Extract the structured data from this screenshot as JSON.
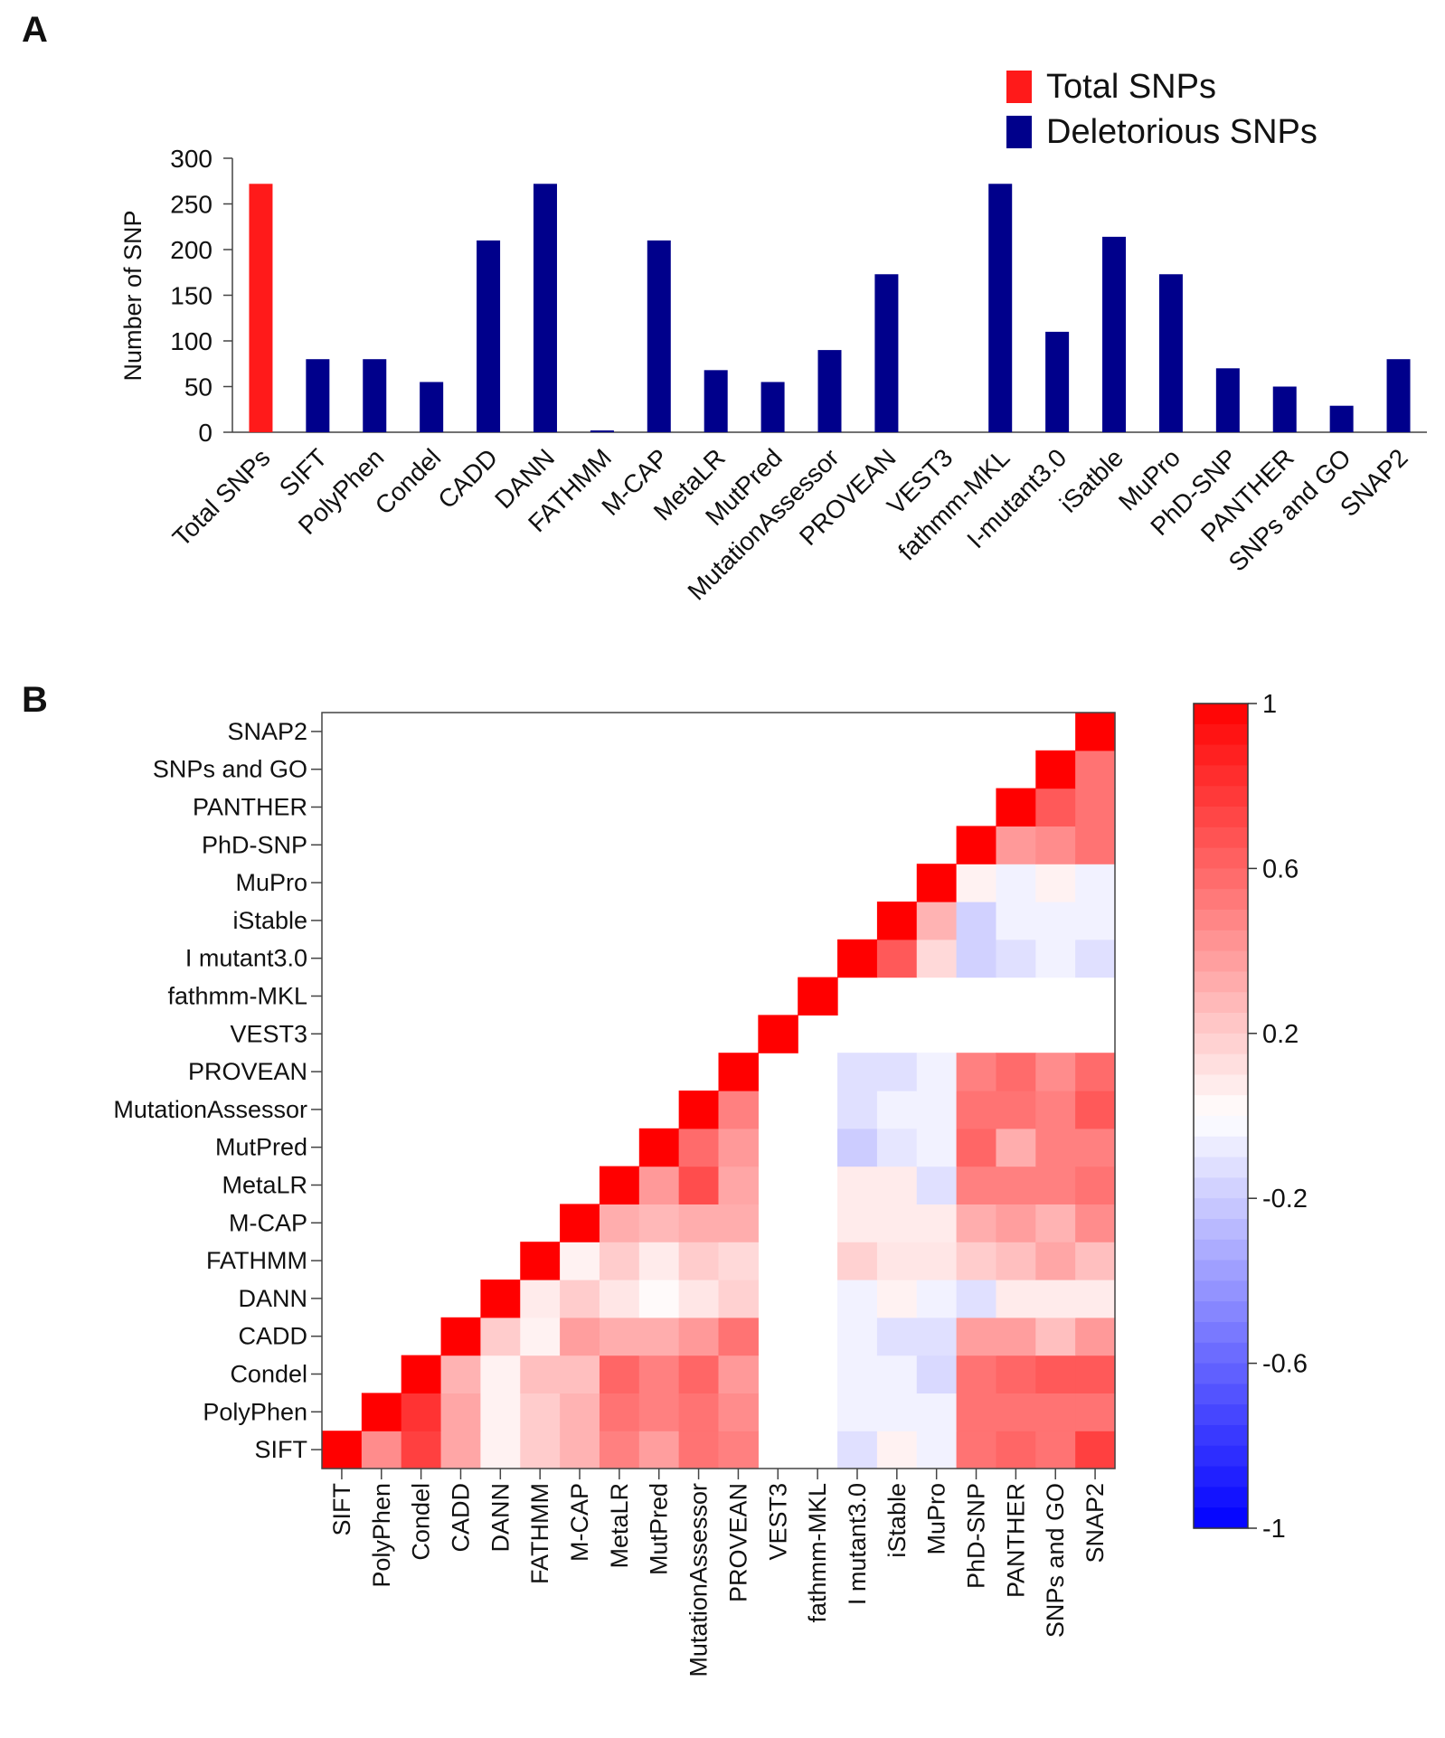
{
  "panels": {
    "a": "A",
    "b": "B"
  },
  "chart_data": [
    {
      "type": "bar",
      "panel": "A",
      "title": "",
      "xlabel": "",
      "ylabel": "Number of SNP",
      "ylim": [
        0,
        300
      ],
      "yticks": [
        0,
        50,
        100,
        150,
        200,
        250,
        300
      ],
      "categories": [
        "Total SNPs",
        "SIFT",
        "PolyPhen",
        "Condel",
        "CADD",
        "DANN",
        "FATHMM",
        "M-CAP",
        "MetaLR",
        "MutPred",
        "MutationAssessor",
        "PROVEAN",
        "VEST3",
        "fathmm-MKL",
        "I-mutant3.0",
        "iSatble",
        "MuPro",
        "PhD-SNP",
        "PANTHER",
        "SNPs and GO",
        "SNAP2"
      ],
      "series": [
        {
          "name": "Total SNPs",
          "color": "#ff1a1a",
          "values": [
            272,
            null,
            null,
            null,
            null,
            null,
            null,
            null,
            null,
            null,
            null,
            null,
            null,
            null,
            null,
            null,
            null,
            null,
            null,
            null,
            null
          ]
        },
        {
          "name": "Deletorious SNPs",
          "color": "#00008b",
          "values": [
            null,
            80,
            80,
            55,
            210,
            272,
            2,
            210,
            68,
            55,
            90,
            173,
            0,
            272,
            110,
            214,
            173,
            70,
            50,
            29,
            80
          ]
        }
      ],
      "legend": [
        "Total SNPs",
        "Deletorious SNPs"
      ],
      "legend_position": "top-right"
    },
    {
      "type": "heatmap",
      "panel": "B",
      "title": "",
      "labels": [
        "SIFT",
        "PolyPhen",
        "Condel",
        "CADD",
        "DANN",
        "FATHMM",
        "M-CAP",
        "MetaLR",
        "MutPred",
        "MutationAssessor",
        "PROVEAN",
        "VEST3",
        "fathmm-MKL",
        "I mutant3.0",
        "iStable",
        "MuPro",
        "PhD-SNP",
        "PANTHER",
        "SNPs and GO",
        "SNAP2"
      ],
      "row_order": "bottom-to-top",
      "matrix": [
        [
          1.0,
          0.45,
          0.75,
          0.35,
          0.05,
          0.2,
          0.3,
          0.5,
          0.38,
          0.55,
          0.5,
          null,
          null,
          -0.12,
          0.05,
          -0.05,
          0.55,
          0.6,
          0.55,
          0.75
        ],
        [
          null,
          1.0,
          0.8,
          0.35,
          0.05,
          0.2,
          0.3,
          0.55,
          0.5,
          0.55,
          0.45,
          null,
          null,
          -0.05,
          -0.05,
          -0.05,
          0.55,
          0.55,
          0.55,
          0.55
        ],
        [
          null,
          null,
          1.0,
          0.3,
          0.05,
          0.25,
          0.25,
          0.6,
          0.5,
          0.6,
          0.4,
          null,
          null,
          -0.05,
          -0.05,
          -0.15,
          0.55,
          0.6,
          0.65,
          0.65
        ],
        [
          null,
          null,
          null,
          1.0,
          0.2,
          0.05,
          0.38,
          0.32,
          0.32,
          0.4,
          0.55,
          null,
          null,
          -0.05,
          -0.12,
          -0.12,
          0.38,
          0.38,
          0.25,
          0.4
        ],
        [
          null,
          null,
          null,
          null,
          1.0,
          0.08,
          0.2,
          0.1,
          0.02,
          0.1,
          0.18,
          null,
          null,
          -0.05,
          0.05,
          -0.05,
          -0.12,
          0.08,
          0.08,
          0.08
        ],
        [
          null,
          null,
          null,
          null,
          null,
          1.0,
          0.05,
          0.2,
          0.08,
          0.2,
          0.15,
          null,
          null,
          0.18,
          0.1,
          0.1,
          0.2,
          0.25,
          0.35,
          0.25
        ],
        [
          null,
          null,
          null,
          null,
          null,
          null,
          1.0,
          0.32,
          0.28,
          0.32,
          0.32,
          null,
          null,
          0.08,
          0.08,
          0.08,
          0.32,
          0.38,
          0.3,
          0.45
        ],
        [
          null,
          null,
          null,
          null,
          null,
          null,
          null,
          1.0,
          0.4,
          0.7,
          0.35,
          null,
          null,
          0.08,
          0.08,
          -0.12,
          0.5,
          0.5,
          0.5,
          0.55
        ],
        [
          null,
          null,
          null,
          null,
          null,
          null,
          null,
          null,
          1.0,
          0.58,
          0.4,
          null,
          null,
          -0.2,
          -0.1,
          -0.05,
          0.6,
          0.32,
          0.5,
          0.5
        ],
        [
          null,
          null,
          null,
          null,
          null,
          null,
          null,
          null,
          null,
          1.0,
          0.5,
          null,
          null,
          -0.12,
          -0.05,
          -0.05,
          0.55,
          0.55,
          0.5,
          0.65
        ],
        [
          null,
          null,
          null,
          null,
          null,
          null,
          null,
          null,
          null,
          null,
          1.0,
          null,
          null,
          -0.12,
          -0.12,
          -0.05,
          0.5,
          0.58,
          0.45,
          0.58
        ],
        [
          null,
          null,
          null,
          null,
          null,
          null,
          null,
          null,
          null,
          null,
          null,
          1.0,
          null,
          null,
          null,
          null,
          null,
          null,
          null,
          null
        ],
        [
          null,
          null,
          null,
          null,
          null,
          null,
          null,
          null,
          null,
          null,
          null,
          null,
          1.0,
          null,
          null,
          null,
          null,
          null,
          null,
          null
        ],
        [
          null,
          null,
          null,
          null,
          null,
          null,
          null,
          null,
          null,
          null,
          null,
          null,
          null,
          1.0,
          0.65,
          0.15,
          -0.18,
          -0.12,
          -0.05,
          -0.12
        ],
        [
          null,
          null,
          null,
          null,
          null,
          null,
          null,
          null,
          null,
          null,
          null,
          null,
          null,
          null,
          1.0,
          0.3,
          -0.18,
          -0.05,
          -0.05,
          -0.05
        ],
        [
          null,
          null,
          null,
          null,
          null,
          null,
          null,
          null,
          null,
          null,
          null,
          null,
          null,
          null,
          null,
          1.0,
          0.05,
          -0.05,
          0.05,
          -0.05
        ],
        [
          null,
          null,
          null,
          null,
          null,
          null,
          null,
          null,
          null,
          null,
          null,
          null,
          null,
          null,
          null,
          null,
          1.0,
          0.4,
          0.45,
          0.55
        ],
        [
          null,
          null,
          null,
          null,
          null,
          null,
          null,
          null,
          null,
          null,
          null,
          null,
          null,
          null,
          null,
          null,
          null,
          1.0,
          0.65,
          0.55
        ],
        [
          null,
          null,
          null,
          null,
          null,
          null,
          null,
          null,
          null,
          null,
          null,
          null,
          null,
          null,
          null,
          null,
          null,
          null,
          1.0,
          0.55
        ],
        [
          null,
          null,
          null,
          null,
          null,
          null,
          null,
          null,
          null,
          null,
          null,
          null,
          null,
          null,
          null,
          null,
          null,
          null,
          null,
          1.0
        ]
      ],
      "colorbar": {
        "range": [
          -1,
          1
        ],
        "ticks": [
          1,
          0.6,
          0.2,
          -0.2,
          -0.6,
          -1
        ],
        "tick_labels": [
          "1",
          "0.6",
          "0.2",
          "-0.2",
          "-0.6",
          "-1"
        ],
        "low_color": "#0000ff",
        "mid_color": "#ffffff",
        "high_color": "#ff0000"
      }
    }
  ]
}
